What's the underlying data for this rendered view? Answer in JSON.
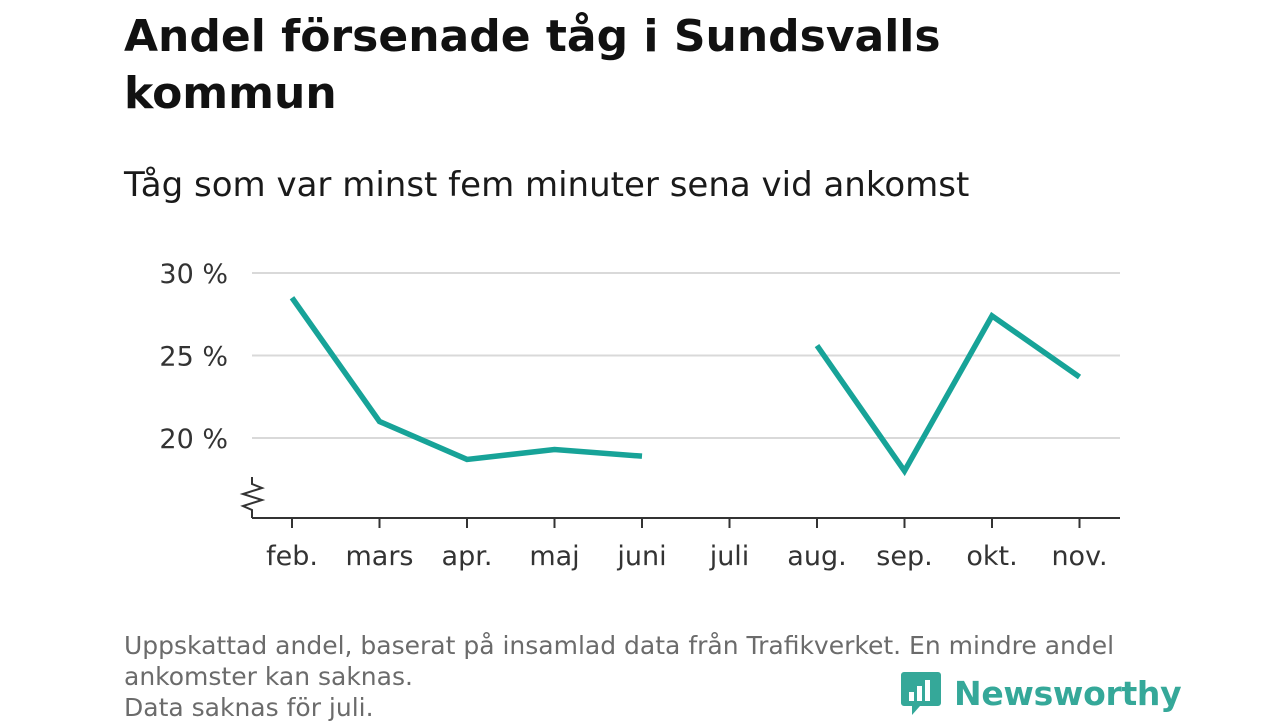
{
  "title": "Andel försenade tåg i Sundsvalls kommun",
  "subtitle": "Tåg som var minst fem minuter sena vid ankomst",
  "footer": {
    "line1": "Uppskattad andel, baserat på insamlad data från Trafikverket. En mindre andel",
    "line2": "ankomster kan saknas.",
    "line3": "Data saknas för juli."
  },
  "logo": {
    "text": "Newsworthy",
    "icon": "bar-chart-speech-bubble-icon",
    "color": "#35a899"
  },
  "colors": {
    "line": "#17a398",
    "grid": "#d9d9d9",
    "axis": "#333333"
  },
  "chart_data": {
    "type": "line",
    "categories": [
      "feb.",
      "mars",
      "apr.",
      "maj",
      "juni",
      "juli",
      "aug.",
      "sep.",
      "okt.",
      "nov."
    ],
    "series": [
      {
        "values": [
          28.5,
          21.0,
          18.7,
          19.3,
          18.9,
          null,
          25.6,
          18.0,
          27.4,
          23.7
        ]
      }
    ],
    "y_ticks": [
      20,
      25,
      30
    ],
    "y_tick_labels": [
      "20 %",
      "25 %",
      "30 %"
    ],
    "ylim": [
      15,
      30
    ],
    "axis_break": true,
    "grid": true,
    "legend": "none"
  }
}
